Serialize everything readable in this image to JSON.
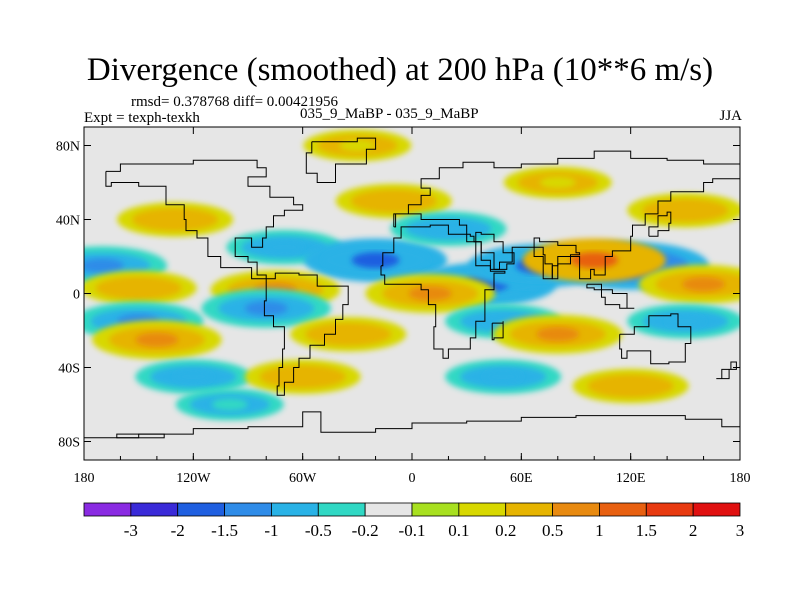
{
  "title": "Divergence (smoothed) at 200 hPa (10**6 m/s)",
  "stats": "rmsd= 0.378768 diff= 0.00421956",
  "experiment": "Expt = texph-texkh",
  "case": "035_9_MaBP - 035_9_MaBP",
  "season": "JJA",
  "colors": {
    "zero": "#e6e6e6",
    "land_outline": "#000000"
  },
  "axes": {
    "lat_ticks": [
      {
        "value": 80,
        "label": "80N"
      },
      {
        "value": 40,
        "label": "40N"
      },
      {
        "value": 0,
        "label": "0"
      },
      {
        "value": -40,
        "label": "40S"
      },
      {
        "value": -80,
        "label": "80S"
      }
    ],
    "lon_ticks": [
      {
        "value": -180,
        "label": "180"
      },
      {
        "value": -120,
        "label": "120W"
      },
      {
        "value": -60,
        "label": "60W"
      },
      {
        "value": 0,
        "label": "0"
      },
      {
        "value": 60,
        "label": "60E"
      },
      {
        "value": 120,
        "label": "120E"
      },
      {
        "value": 180,
        "label": "180"
      }
    ]
  },
  "colorbar": {
    "levels": [
      "-3",
      "-2",
      "-1.5",
      "-1",
      "-0.5",
      "-0.2",
      "-0.1",
      "0.1",
      "0.2",
      "0.5",
      "1",
      "1.5",
      "2",
      "3"
    ],
    "colors": [
      "#8a2be2",
      "#3a2ad8",
      "#1f5fe0",
      "#2f8ce8",
      "#29b2e6",
      "#30d8c4",
      "#e6e6e6",
      "#a8e020",
      "#d8d800",
      "#e6b400",
      "#e88a10",
      "#e86010",
      "#e83a10",
      "#e01010"
    ]
  },
  "chart_data": {
    "type": "heatmap",
    "title": "Divergence (smoothed) at 200 hPa (10**6 m/s)",
    "xlim": [
      -180,
      180
    ],
    "ylim": [
      -90,
      90
    ],
    "features": [
      {
        "lon": -70,
        "lat": 25,
        "value": -0.5
      },
      {
        "lon": -20,
        "lat": 18,
        "value": -1.5
      },
      {
        "lon": 40,
        "lat": 5,
        "value": -1.5
      },
      {
        "lon": 70,
        "lat": 15,
        "value": -1.5
      },
      {
        "lon": 120,
        "lat": 15,
        "value": -2
      },
      {
        "lon": -170,
        "lat": 15,
        "value": -1
      },
      {
        "lon": -150,
        "lat": 3,
        "value": 0.5
      },
      {
        "lon": -75,
        "lat": 2,
        "value": 1
      },
      {
        "lon": 10,
        "lat": 0,
        "value": 1
      },
      {
        "lon": 100,
        "lat": 18,
        "value": 1.5
      },
      {
        "lon": 160,
        "lat": 5,
        "value": 1
      },
      {
        "lon": -150,
        "lat": -15,
        "value": -1
      },
      {
        "lon": -80,
        "lat": -8,
        "value": -1
      },
      {
        "lon": 50,
        "lat": -15,
        "value": -0.5
      },
      {
        "lon": 150,
        "lat": -15,
        "value": -0.5
      },
      {
        "lon": -140,
        "lat": -25,
        "value": 1
      },
      {
        "lon": -35,
        "lat": -22,
        "value": 0.5
      },
      {
        "lon": 80,
        "lat": -22,
        "value": 1
      },
      {
        "lon": -130,
        "lat": 40,
        "value": 0.5
      },
      {
        "lon": -10,
        "lat": 50,
        "value": 0.5
      },
      {
        "lon": 20,
        "lat": 35,
        "value": -0.5
      },
      {
        "lon": 150,
        "lat": 45,
        "value": 0.5
      },
      {
        "lon": -120,
        "lat": -45,
        "value": -0.5
      },
      {
        "lon": 50,
        "lat": -45,
        "value": -0.5
      },
      {
        "lon": -60,
        "lat": -45,
        "value": 0.5
      },
      {
        "lon": 120,
        "lat": -50,
        "value": 0.5
      },
      {
        "lon": -100,
        "lat": -60,
        "value": -0.2
      },
      {
        "lon": 80,
        "lat": 60,
        "value": 0.2
      },
      {
        "lon": -30,
        "lat": 80,
        "value": 0.2
      }
    ]
  }
}
